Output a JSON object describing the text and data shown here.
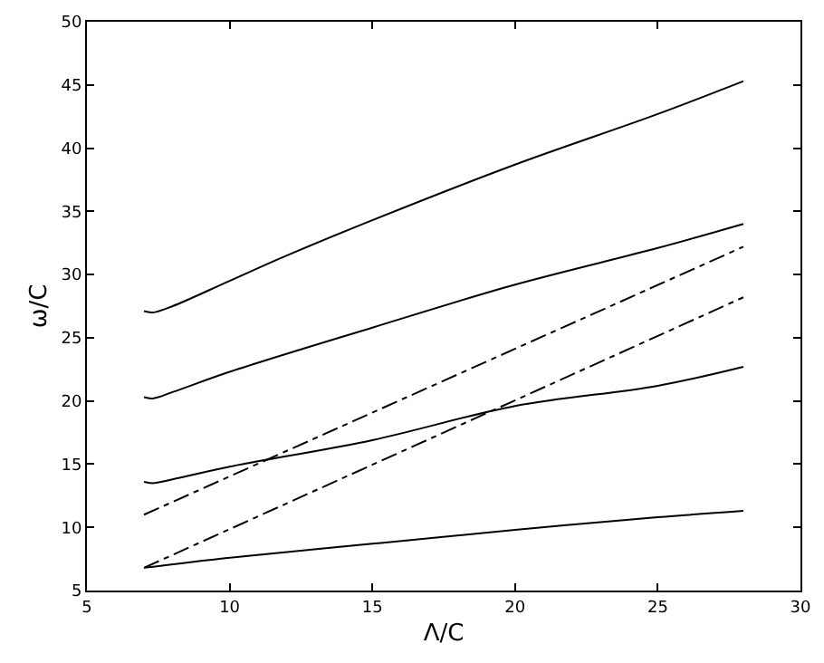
{
  "chart_data": {
    "type": "line",
    "xlabel": "Λ/C",
    "ylabel": "ω/C",
    "xlim": [
      5,
      30
    ],
    "xticks": [
      5,
      10,
      15,
      20,
      25,
      30
    ],
    "ylim": [
      5,
      50
    ],
    "yticks": [
      5,
      10,
      15,
      20,
      25,
      30,
      35,
      40,
      45,
      50
    ],
    "marker": "none",
    "series": [
      {
        "color": "#000000",
        "line_style": "solid",
        "x": [
          7,
          7.3,
          8,
          10,
          12,
          15,
          20,
          25,
          28
        ],
        "values": [
          27.1,
          27.0,
          27.5,
          29.5,
          31.5,
          34.3,
          38.7,
          42.7,
          45.3
        ]
      },
      {
        "color": "#000000",
        "line_style": "solid",
        "x": [
          7,
          7.3,
          8,
          10,
          15,
          20,
          25,
          28
        ],
        "values": [
          20.3,
          20.2,
          20.7,
          22.3,
          25.8,
          29.2,
          32.1,
          34.0
        ]
      },
      {
        "color": "#000000",
        "line_style": "solid",
        "x": [
          7,
          7.3,
          8,
          10,
          15,
          20,
          25,
          28
        ],
        "values": [
          13.6,
          13.5,
          13.8,
          14.8,
          16.9,
          19.6,
          21.2,
          22.7
        ]
      },
      {
        "color": "#000000",
        "line_style": "solid",
        "x": [
          7,
          10,
          15,
          20,
          25,
          28
        ],
        "values": [
          6.8,
          7.6,
          8.7,
          9.8,
          10.8,
          11.3
        ]
      },
      {
        "color": "#000000",
        "line_style": "dashdot",
        "x": [
          7,
          28
        ],
        "values": [
          11.0,
          32.2
        ]
      },
      {
        "color": "#000000",
        "line_style": "dashdot",
        "x": [
          7,
          28
        ],
        "values": [
          6.8,
          28.2
        ]
      }
    ]
  }
}
